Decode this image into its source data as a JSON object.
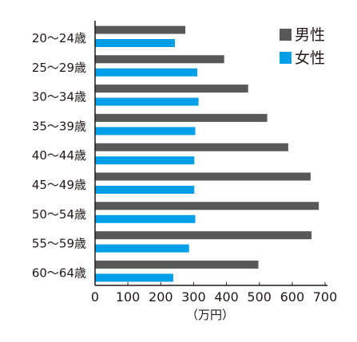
{
  "chart_data": {
    "type": "bar",
    "orientation": "horizontal",
    "categories": [
      "20〜24歳",
      "25〜29歳",
      "30〜34歳",
      "35〜39歳",
      "40〜44歳",
      "45〜49歳",
      "50〜54歳",
      "55〜59歳",
      "60〜64歳"
    ],
    "series": [
      {
        "name": "男性",
        "color": "#595757",
        "values": [
          275,
          393,
          466,
          524,
          588,
          656,
          681,
          659,
          497
        ]
      },
      {
        "name": "女性",
        "color": "#00a0e9",
        "values": [
          243,
          311,
          315,
          305,
          302,
          302,
          305,
          286,
          238
        ]
      }
    ],
    "xticks": [
      0,
      100,
      200,
      300,
      400,
      500,
      600,
      700
    ],
    "xlim": [
      0,
      700
    ],
    "xlabel": "（万円）",
    "ylabel": "",
    "title": "",
    "legend_position": "top-right",
    "grid": false
  }
}
